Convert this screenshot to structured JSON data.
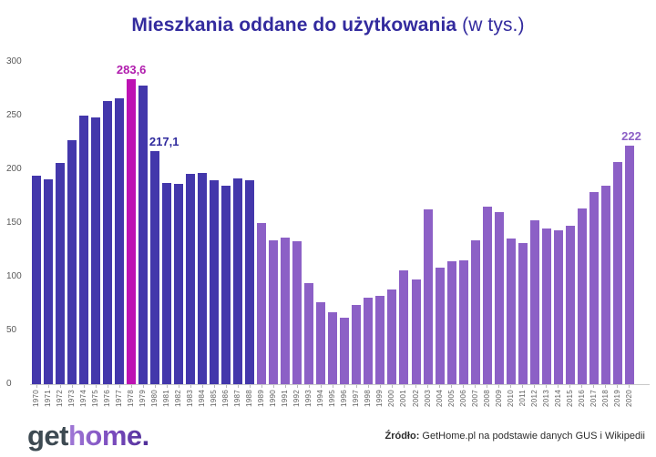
{
  "title": {
    "main": "Mieszkania oddane do użytkowania",
    "suffix": " (w tys.)"
  },
  "chart_data": {
    "type": "bar",
    "title": "Mieszkania oddane do użytkowania (w tys.)",
    "xlabel": "",
    "ylabel": "",
    "ylim": [
      0,
      300
    ],
    "yticks": [
      0,
      50,
      100,
      150,
      200,
      250,
      300
    ],
    "grid": false,
    "legend": "none",
    "categories": [
      1970,
      1971,
      1972,
      1973,
      1974,
      1975,
      1976,
      1977,
      1978,
      1979,
      1980,
      1981,
      1982,
      1983,
      1984,
      1985,
      1986,
      1987,
      1988,
      1989,
      1990,
      1991,
      1992,
      1993,
      1994,
      1995,
      1996,
      1997,
      1998,
      1999,
      2000,
      2001,
      2002,
      2003,
      2004,
      2005,
      2006,
      2007,
      2008,
      2009,
      2010,
      2011,
      2012,
      2013,
      2014,
      2015,
      2016,
      2017,
      2018,
      2019,
      2020
    ],
    "values": [
      194.2,
      190.5,
      205.9,
      227.0,
      249.8,
      248.1,
      263.5,
      266.1,
      283.6,
      278.0,
      217.1,
      187.0,
      186.1,
      195.8,
      196.5,
      189.6,
      185.0,
      191.4,
      189.6,
      150.2,
      134.2,
      136.8,
      133.0,
      94.4,
      76.1,
      67.1,
      62.1,
      73.7,
      80.6,
      82.0,
      87.8,
      106.0,
      97.6,
      162.7,
      108.1,
      114.1,
      115.4,
      133.7,
      165.2,
      160.0,
      135.8,
      131.0,
      152.5,
      145.1,
      143.2,
      147.7,
      163.4,
      178.5,
      184.8,
      207.2,
      222.0
    ],
    "colors": {
      "dark": "#4337ab",
      "highlight": "#bd12b3",
      "light": "#8c60c6"
    },
    "highlight_year": 1978,
    "dark_years_end": 1988,
    "annotations": [
      {
        "year": 1978,
        "label": "283,6",
        "color": "#b01cad",
        "dx": 0,
        "dy": 0
      },
      {
        "year": 1980,
        "label": "217,1",
        "color": "#2f2a9d",
        "dx": 10,
        "dy": 0
      },
      {
        "year": 2020,
        "label": "222",
        "color": "#8c60c6",
        "dx": 2,
        "dy": 0
      }
    ]
  },
  "footer": {
    "logo_get": "get",
    "logo_home": "home.",
    "source_prefix": "Źródło:",
    "source_rest": " GetHome.pl na podstawie danych GUS i Wikipedii"
  }
}
